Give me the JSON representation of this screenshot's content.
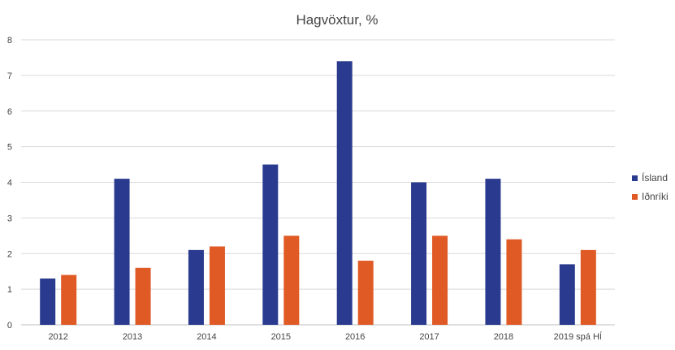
{
  "chart_data": {
    "type": "bar",
    "title": "Hagvöxtur, %",
    "xlabel": "",
    "ylabel": "",
    "categories": [
      "2012",
      "2013",
      "2014",
      "2015",
      "2016",
      "2017",
      "2018",
      "2019 spá HÍ"
    ],
    "series": [
      {
        "name": "Ísland",
        "color": "#2a3b8f",
        "values": [
          1.3,
          4.1,
          2.1,
          4.5,
          7.4,
          4.0,
          4.1,
          1.7
        ]
      },
      {
        "name": "Iðnríki",
        "color": "#e05a26",
        "values": [
          1.4,
          1.6,
          2.2,
          2.5,
          1.8,
          2.5,
          2.4,
          2.1
        ]
      }
    ],
    "ylim": [
      0,
      8
    ],
    "yticks": [
      "0",
      "1",
      "2",
      "3",
      "4",
      "5",
      "6",
      "7",
      "8"
    ],
    "grid": true,
    "legend_position": "right"
  }
}
